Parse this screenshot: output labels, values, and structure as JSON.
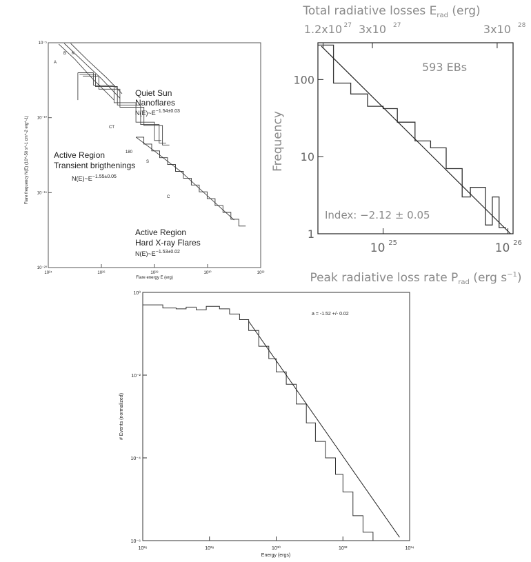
{
  "chart_data": [
    {
      "type": "line",
      "panel": "top-left",
      "xlabel": "Flare energy E (erg)",
      "ylabel": "Flare frequency N(E) (10^-50 s^-1 cm^-2 erg^-1)",
      "x_log": true,
      "y_log": true,
      "xlim": [
        1e+24,
        1e+32
      ],
      "ylim": [
        1e-20,
        1e-05
      ],
      "x_ticks": [
        {
          "value": 1e+24,
          "label": "10²⁴"
        },
        {
          "value": 1e+26,
          "label": "10²⁶"
        },
        {
          "value": 1e+28,
          "label": "10²⁸"
        },
        {
          "value": 1e+30,
          "label": "10³⁰"
        },
        {
          "value": 1e+32,
          "label": "10³²"
        }
      ],
      "y_ticks": [
        {
          "value": 1e-05,
          "label": "10⁻⁵"
        },
        {
          "value": 1e-10,
          "label": "10⁻¹⁰"
        },
        {
          "value": 1e-15,
          "label": "10⁻¹⁵"
        },
        {
          "value": 1e-20,
          "label": "10⁻²⁰"
        }
      ],
      "annotations": [
        {
          "id": "qs",
          "lines": [
            "Quiet Sun",
            "Nanoflares"
          ],
          "law": "N(E)~E",
          "exp": "−1.54±0.03"
        },
        {
          "id": "ar",
          "lines": [
            "Active Region",
            "Transient brigthenings"
          ],
          "law": "N(E)~E",
          "exp": "−1.55±0.05"
        },
        {
          "id": "hx",
          "lines": [
            "Active Region",
            "Hard X-ray Flares"
          ],
          "law": "N(E)~E",
          "exp": "−1.53±0.02"
        }
      ],
      "curve_labels": [
        "A",
        "B",
        "K",
        "C",
        "S",
        "CT",
        "180"
      ],
      "series": [
        {
          "id": "qs-A",
          "x": [
            2.5e+24,
            1e+25,
            5e+25,
            3e+26
          ],
          "y": [
            8e-06,
            8e-07,
            3.5e-08,
            1.5e-09
          ]
        },
        {
          "id": "qs-B",
          "x": [
            4e+24,
            2e+25,
            1e+26,
            5e+26
          ],
          "y": [
            9e-06,
            6e-07,
            4e-08,
            2e-09
          ]
        },
        {
          "id": "qs-K",
          "x": [
            7e+24,
            3e+25,
            1.5e+26,
            6e+26
          ],
          "y": [
            9e-06,
            7e-07,
            5e-08,
            4e-09
          ]
        },
        {
          "id": "ar-1",
          "x": [
            1.3e+25,
            5e+25,
            3e+26,
            2e+27,
            1e+28
          ],
          "y": [
            1e-07,
            1.5e-08,
            1e-09,
            5e-11,
            3e-12
          ]
        },
        {
          "id": "ar-2",
          "x": [
            1.5e+25,
            6e+25,
            4e+26,
            3e+27,
            1.5e+28
          ],
          "y": [
            8e-08,
            1.2e-08,
            7e-10,
            3.5e-11,
            2e-12
          ]
        },
        {
          "id": "ar-3",
          "x": [
            2e+25,
            8e+25,
            5e+26,
            4e+27,
            2e+28
          ],
          "y": [
            6e-08,
            8e-09,
            5e-10,
            3e-11,
            1.5e-12
          ]
        },
        {
          "id": "hx-C",
          "x": [
            2e+27,
            1e+28,
            1e+29,
            1e+30,
            1e+31
          ],
          "y": [
            5e-12,
            6e-13,
            2.5e-14,
            6e-16,
            1.5e-17
          ]
        }
      ]
    },
    {
      "type": "histogram",
      "panel": "top-right",
      "title_top": "Total radiative losses E",
      "title_top_sub": "rad",
      "title_top_unit": " (erg)",
      "xlabel": "Peak radiative loss rate P",
      "xlabel_sub": "rad",
      "xlabel_unit": " (erg s",
      "xlabel_tail": ")",
      "ylabel": "Frequency",
      "x_log": true,
      "y_log": true,
      "xlim": [
        3e+24,
        1.1e+26
      ],
      "ylim": [
        1,
        300
      ],
      "x_ticks": [
        {
          "value": 1e+25,
          "label": "10",
          "sup": "25"
        },
        {
          "value": 1e+26,
          "label": "10",
          "sup": "26"
        }
      ],
      "y_ticks": [
        {
          "value": 1,
          "label": "1"
        },
        {
          "value": 10,
          "label": "10"
        },
        {
          "value": 100,
          "label": "100"
        }
      ],
      "top_ticks": [
        {
          "value": 3.3e+24,
          "label": "1.2x10",
          "sup": "27"
        },
        {
          "value": 8.2e+24,
          "label": "3x10",
          "sup": "27"
        },
        {
          "value": 8.2e+25,
          "label": "3x10",
          "sup": "28"
        }
      ],
      "count_label": "593 EBs",
      "index_label": "Index: −2.12 ± 0.05",
      "bins_x": [
        3e+24,
        4e+24,
        5.5e+24,
        7.5e+24,
        1e+25,
        1.3e+25,
        1.8e+25,
        2.4e+25,
        3.2e+25,
        4.3e+25,
        5e+25,
        5.8e+25,
        6.6e+25,
        7.5e+25,
        8.5e+25
      ],
      "bins_y": [
        280,
        90,
        65,
        45,
        42,
        28,
        16,
        13,
        7,
        3,
        4,
        4,
        1.3,
        3,
        1.2
      ],
      "fit": {
        "x": [
          3.2e+24,
          1.05e+26
        ],
        "y": [
          270,
          1
        ]
      }
    },
    {
      "type": "histogram",
      "panel": "bottom",
      "xlabel": "Energy (ergs)",
      "ylabel": "# Events (normalized)",
      "x_log": true,
      "y_log": true,
      "xlim": [
        1e+26,
        1e+34
      ],
      "ylim": [
        1e-06,
        1
      ],
      "x_ticks": [
        {
          "value": 1e+26,
          "label": "10²⁶"
        },
        {
          "value": 1e+28,
          "label": "10²⁸"
        },
        {
          "value": 1e+30,
          "label": "10³⁰"
        },
        {
          "value": 1e+32,
          "label": "10³²"
        },
        {
          "value": 1e+34,
          "label": "10³⁴"
        }
      ],
      "y_ticks": [
        {
          "value": 1,
          "label": "10⁰"
        },
        {
          "value": 0.01,
          "label": "10⁻²"
        },
        {
          "value": 0.0001,
          "label": "10⁻⁴"
        },
        {
          "value": 1e-06,
          "label": "10⁻⁶"
        }
      ],
      "fit_label": "a = -1.52 +/- 0.02",
      "hist": {
        "x": [
          1e+26,
          4e+26,
          1e+27,
          2e+27,
          4e+27,
          8e+27,
          2e+28,
          4e+28,
          8e+28,
          1.5e+29,
          3e+29,
          6e+29,
          1e+30,
          2e+30,
          4e+30,
          8e+30,
          1.5e+31,
          3e+31,
          6e+31,
          1e+32,
          2e+32,
          4e+32,
          8e+32,
          1.5e+33,
          3e+33
        ],
        "y": [
          0.5,
          0.42,
          0.4,
          0.44,
          0.38,
          0.46,
          0.4,
          0.3,
          0.22,
          0.12,
          0.05,
          0.025,
          0.012,
          0.006,
          0.002,
          0.0007,
          0.00025,
          0.0001,
          4e-05,
          1.5e-05,
          4e-06,
          1.6e-06,
          1e-06,
          1e-06,
          1e-06
        ]
      },
      "fit": {
        "x": [
          1.5e+29,
          5e+33
        ],
        "y": [
          0.2,
          1.2e-06
        ]
      }
    }
  ]
}
